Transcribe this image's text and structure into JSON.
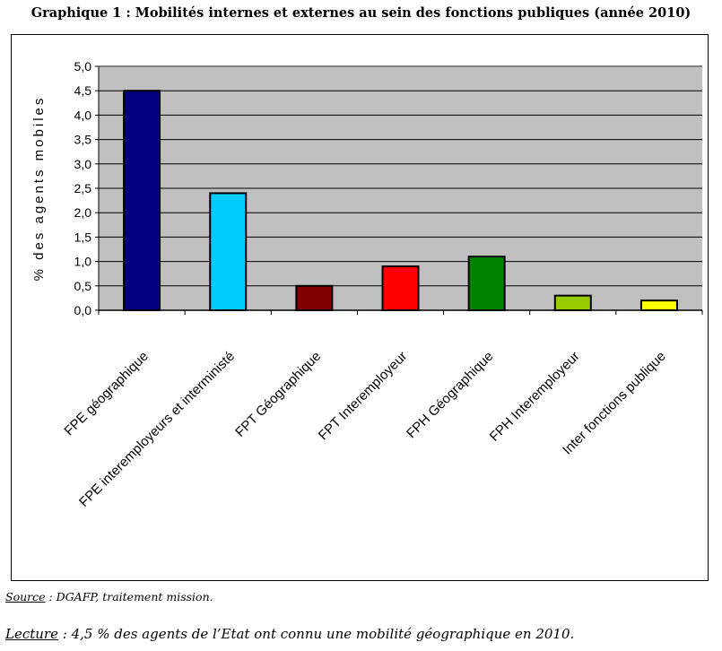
{
  "chart_data": {
    "type": "bar",
    "title": "Graphique 1 : Mobilités internes et externes au sein des fonctions publiques (année 2010)",
    "xlabel": "",
    "ylabel": "% des agents mobiles",
    "ylim": [
      0,
      5
    ],
    "yticks": [
      "0,0",
      "0,5",
      "1,0",
      "1,5",
      "2,0",
      "2,5",
      "3,0",
      "3,5",
      "4,0",
      "4,5",
      "5,0"
    ],
    "grid": true,
    "categories": [
      "FPE géographique",
      "FPE interemployeurs et interministé",
      "FPT Géographique",
      "FPT Interemployeur",
      "FPH Géographique",
      "FPH Interemployeur",
      "Inter fonctions publique"
    ],
    "values": [
      4.5,
      2.4,
      0.5,
      0.9,
      1.1,
      0.3,
      0.2
    ],
    "colors": [
      "#000080",
      "#00CCFF",
      "#800000",
      "#FF0000",
      "#008000",
      "#99CC00",
      "#FFFF00"
    ],
    "plot_background": "#C0C0C0"
  },
  "footer": {
    "source_label": "Source",
    "source_text": " : DGAFP, traitement mission.",
    "lecture_label": "Lecture",
    "lecture_text": " : 4,5 % des agents de l’Etat ont connu une mobilité géographique en 2010."
  }
}
